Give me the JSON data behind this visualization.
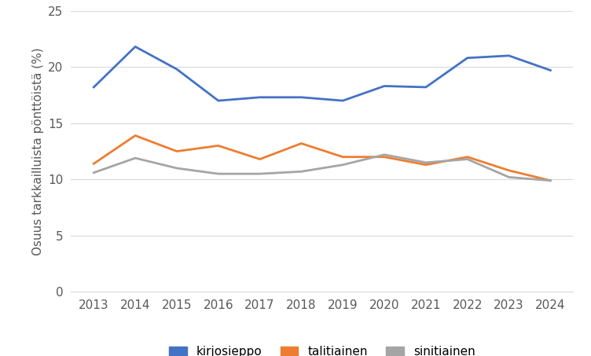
{
  "years": [
    2013,
    2014,
    2015,
    2016,
    2017,
    2018,
    2019,
    2020,
    2021,
    2022,
    2023,
    2024
  ],
  "kirjosieppo": [
    18.2,
    21.8,
    19.8,
    17.0,
    17.3,
    17.3,
    17.0,
    18.3,
    18.2,
    20.8,
    21.0,
    19.7
  ],
  "talitiainen": [
    11.4,
    13.9,
    12.5,
    13.0,
    11.8,
    13.2,
    12.0,
    12.0,
    11.3,
    12.0,
    10.8,
    9.9
  ],
  "sinitiainen": [
    10.6,
    11.9,
    11.0,
    10.5,
    10.5,
    10.7,
    11.3,
    12.2,
    11.5,
    11.8,
    10.2,
    9.9
  ],
  "kirjosieppo_color": "#4472C4",
  "talitiainen_color": "#ED7D31",
  "sinitiainen_color": "#A5A5A5",
  "ylabel": "Osuus tarkkailluista pönttöistä (%)",
  "ylim": [
    0,
    25
  ],
  "yticks": [
    0,
    5,
    10,
    15,
    20,
    25
  ],
  "background_color": "#FFFFFF",
  "grid_color": "#D9D9D9",
  "legend_labels": [
    "kirjosieppo",
    "talitiainen",
    "sinitiainen"
  ],
  "tick_color": "#595959",
  "label_fontsize": 11,
  "tick_fontsize": 11
}
